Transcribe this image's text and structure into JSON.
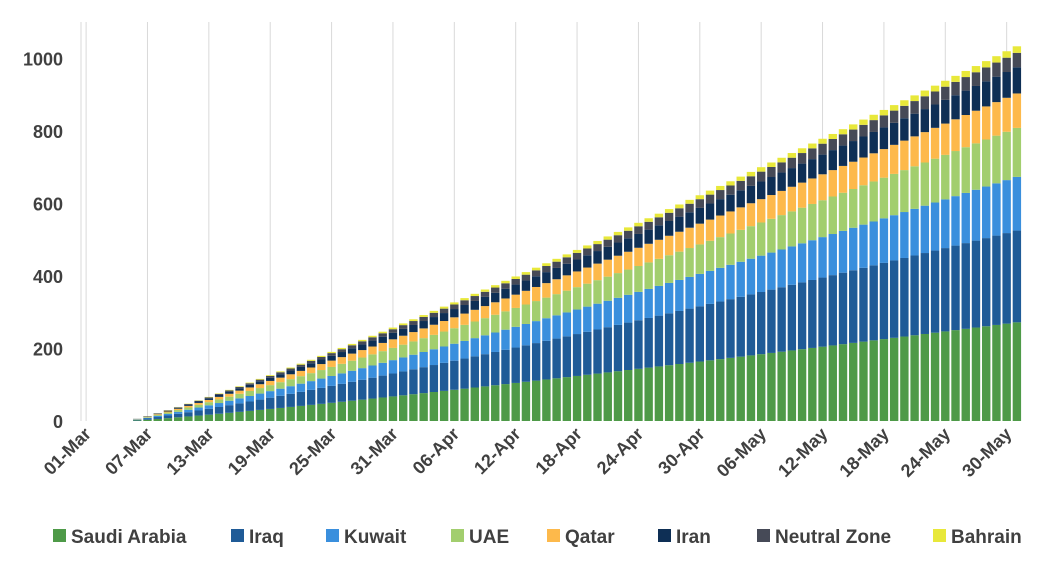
{
  "chart_data": {
    "type": "bar",
    "stacked": true,
    "x_start": "01-Mar",
    "x_end": "31-May",
    "tick_labels": [
      "01-Mar",
      "07-Mar",
      "13-Mar",
      "19-Mar",
      "25-Mar",
      "31-Mar",
      "06-Apr",
      "12-Apr",
      "18-Apr",
      "24-Apr",
      "30-Apr",
      "06-May",
      "12-May",
      "18-May",
      "24-May",
      "30-May"
    ],
    "ylim": [
      0,
      1100
    ],
    "yticks": [
      0,
      200,
      400,
      600,
      800,
      1000
    ],
    "grid": "vertical",
    "legend_position": "bottom",
    "series": [
      {
        "name": "Saudi Arabia",
        "color": "#4E9A48",
        "end_value": 272
      },
      {
        "name": "Iraq",
        "color": "#1F5B97",
        "end_value": 253
      },
      {
        "name": "Kuwait",
        "color": "#3A8FDD",
        "end_value": 148
      },
      {
        "name": "UAE",
        "color": "#A2CE6E",
        "end_value": 135
      },
      {
        "name": "Qatar",
        "color": "#FDB94B",
        "end_value": 95
      },
      {
        "name": "Iran",
        "color": "#0E2F55",
        "end_value": 72
      },
      {
        "name": "Neutral Zone",
        "color": "#464A57",
        "end_value": 40
      },
      {
        "name": "Bahrain",
        "color": "#E8E83A",
        "end_value": 18
      }
    ]
  }
}
